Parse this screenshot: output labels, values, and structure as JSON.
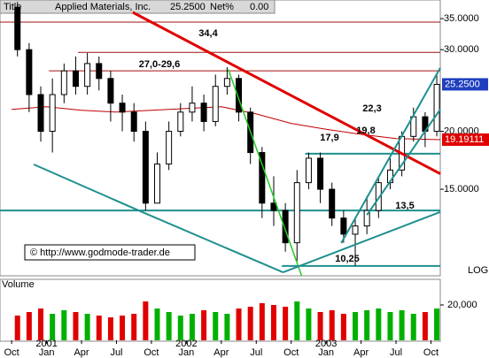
{
  "chart_data": {
    "type": "candlestick",
    "header_label": "Title",
    "title": "Applied Materials, Inc.",
    "price_label": {
      "value": 25.25,
      "label": "25.2500"
    },
    "net_label": "Net%",
    "net_value": {
      "value": 0,
      "label": "0.00"
    },
    "scale_label": "LOG",
    "log": true,
    "xlim": [
      -1,
      36.8
    ],
    "xticks": [
      {
        "value": 0,
        "label": "Oct"
      },
      {
        "value": 3,
        "label": "Jan"
      },
      {
        "value": 6,
        "label": "Apr"
      },
      {
        "value": 9,
        "label": "Jul"
      },
      {
        "value": 12,
        "label": "Oct"
      },
      {
        "value": 15,
        "label": "Jan"
      },
      {
        "value": 18,
        "label": "Apr"
      },
      {
        "value": 21,
        "label": "Jul"
      },
      {
        "value": 24,
        "label": "Oct"
      },
      {
        "value": 27,
        "label": "Jan"
      },
      {
        "value": 30,
        "label": "Apr"
      },
      {
        "value": 33,
        "label": "Jul"
      },
      {
        "value": 36,
        "label": "Oct"
      }
    ],
    "year_ticks": [
      {
        "value": 3,
        "label": "2001"
      },
      {
        "value": 15,
        "label": "2002"
      },
      {
        "value": 27,
        "label": "2003"
      }
    ],
    "ylim": [
      9.76,
      36.1
    ],
    "yticks": [
      {
        "value": 35,
        "label": "35.0000"
      },
      {
        "value": 30,
        "label": "30.0000"
      },
      {
        "value": 20,
        "label": "20.0000"
      },
      {
        "value": 15,
        "label": "15.0000"
      }
    ],
    "candles": {
      "x": [
        0.5,
        1.5,
        2.5,
        3.5,
        4.5,
        5.5,
        6.5,
        7.5,
        8.5,
        9.5,
        10.5,
        11.5,
        12.5,
        13.5,
        14.5,
        15.5,
        16.5,
        17.5,
        18.5,
        19.5,
        20.5,
        21.5,
        22.5,
        23.5,
        24.5,
        25.5,
        26.5,
        27.5,
        28.5,
        29.5,
        30.5,
        31.5,
        32.5,
        33.5,
        34.5,
        35.5,
        36.5
      ],
      "open": [
        37,
        30,
        24,
        20,
        24,
        27,
        25,
        28,
        26,
        23,
        22,
        20,
        14,
        17,
        20,
        22,
        23,
        21,
        25,
        26,
        22,
        18,
        14,
        13.5,
        11.5,
        15.5,
        17.5,
        15,
        13,
        12,
        12.5,
        13.5,
        15.5,
        16.5,
        19.5,
        21.5,
        20
      ],
      "high": [
        38,
        31,
        25,
        26,
        28,
        29,
        29.5,
        29,
        27,
        24,
        23,
        21,
        18,
        21,
        23,
        25,
        24,
        26.5,
        27.5,
        26.5,
        22.5,
        18.5,
        16,
        14,
        16.5,
        18,
        18,
        15.5,
        13.5,
        13,
        14.5,
        16,
        17.5,
        20,
        22.5,
        22,
        26.5
      ],
      "low": [
        29,
        22,
        19,
        18,
        23,
        24,
        24,
        24.5,
        21,
        20,
        19,
        13.5,
        14,
        16.5,
        19.5,
        21,
        20,
        20.5,
        24,
        21,
        17,
        13,
        12.5,
        11,
        10.5,
        15,
        14,
        12.5,
        11.5,
        10.25,
        12,
        13,
        15,
        16,
        19,
        18.5,
        19.5
      ],
      "close": [
        30,
        24,
        20,
        24,
        27,
        25,
        28,
        26,
        23,
        22,
        20,
        14,
        17,
        20,
        22,
        23,
        21,
        25,
        26,
        22,
        18,
        14,
        13.5,
        11.5,
        15.5,
        17.5,
        15,
        13,
        12,
        12.5,
        13.5,
        15.5,
        16.5,
        19.5,
        21.5,
        20,
        25.25
      ]
    },
    "volume": {
      "label": "Volume",
      "values": [
        14000,
        16000,
        18000,
        15000,
        17000,
        16000,
        15000,
        14000,
        13000,
        14000,
        15000,
        22000,
        18000,
        16000,
        14000,
        15000,
        17000,
        16000,
        15000,
        18000,
        19000,
        21000,
        20000,
        19000,
        22000,
        18000,
        16000,
        17000,
        15000,
        16000,
        17000,
        18000,
        16000,
        17000,
        15000,
        16000,
        18000
      ],
      "ylim": [
        0,
        30000
      ],
      "yticks": [
        {
          "value": 20000,
          "label": "20,000"
        }
      ],
      "up_color": "#00b000",
      "down_color": "#e00000"
    },
    "ma": {
      "color": "#c00000",
      "x": [
        0,
        3,
        6,
        9,
        12,
        15,
        18,
        21,
        24,
        27,
        30,
        33,
        36.8
      ],
      "y": [
        22.3,
        22.6,
        22.2,
        22,
        22.2,
        22.4,
        22.6,
        21.8,
        20.8,
        20.2,
        19.7,
        19.3,
        19.19111
      ],
      "last_label": "19.19111"
    },
    "levels": [
      {
        "y": 34.4,
        "from": -1,
        "label": "34,4",
        "color": "#a01010"
      },
      {
        "y": 29.6,
        "from": 5.7,
        "color": "#a01010"
      },
      {
        "y": 27.0,
        "from": 3.2,
        "label": "27,0-29,6",
        "color": "#a01010"
      },
      {
        "y": 17.9,
        "from": 25.2,
        "label": "17,9",
        "color": "#1f8f8f"
      },
      {
        "y": 13.5,
        "from": -1,
        "label": "13,5",
        "color": "#1f8f8f"
      },
      {
        "y": 10.25,
        "from": 23.2,
        "label": "10,25",
        "color": "#1f8f8f"
      }
    ],
    "trendlines": [
      {
        "x": [
          10.4,
          36.8
        ],
        "y": [
          36.1,
          16.2
        ],
        "color": "#e00000",
        "width": 3
      },
      {
        "x": [
          18.6,
          24.9
        ],
        "y": [
          27.2,
          9.76
        ],
        "color": "#22cc22",
        "width": 1.5
      },
      {
        "x": [
          1.9,
          11.2,
          23.3
        ],
        "y": [
          16.97,
          13.4,
          9.93
        ],
        "color": "#1f8f8f",
        "width": 2
      },
      {
        "x": [
          23.3,
          36.8
        ],
        "y": [
          9.93,
          13.4
        ],
        "color": "#1f8f8f",
        "width": 2
      },
      {
        "x": [
          28.3,
          36.8
        ],
        "y": [
          11.48,
          27.4
        ],
        "color": "#1f8f8f",
        "width": 2
      },
      {
        "x": [
          30.5,
          36.8
        ],
        "y": [
          13.2,
          22.3
        ],
        "color": "#1f8f8f",
        "width": 2
      }
    ],
    "annotations": [
      {
        "value": 22.3,
        "label": "22,3"
      },
      {
        "value": 19.8,
        "label": "19,8"
      }
    ],
    "copyright": "© http://www.godmode-trader.de"
  }
}
